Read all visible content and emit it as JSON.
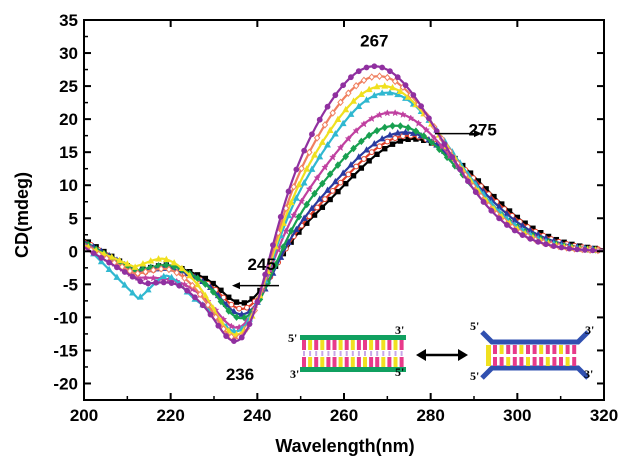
{
  "chart_data": {
    "type": "line",
    "title": "",
    "xlabel": "Wavelength(nm)",
    "ylabel": "CD(mdeg)",
    "xlim": [
      200,
      320
    ],
    "ylim": [
      -22.5,
      35
    ],
    "xticks": [
      200,
      220,
      240,
      260,
      280,
      300,
      320
    ],
    "yticks": [
      -20,
      -15,
      -10,
      -5,
      0,
      5,
      10,
      15,
      20,
      25,
      30,
      35
    ],
    "grid": false,
    "legend": "none",
    "series": [
      {
        "color": "#000000",
        "marker": "square",
        "min": [
          237,
          -8.5
        ],
        "max": [
          276,
          17.0
        ],
        "dip": [
          212,
          -3.0
        ],
        "bump": [
          219,
          -2.0
        ]
      },
      {
        "color": "#e0402a",
        "marker": "circle-open",
        "min": [
          237,
          -9.5
        ],
        "max": [
          275,
          17.5
        ],
        "dip": [
          212,
          -3.5
        ],
        "bump": [
          219,
          -2.5
        ]
      },
      {
        "color": "#2a3aa0",
        "marker": "triangle",
        "min": [
          237,
          -10.5
        ],
        "max": [
          274,
          18.0
        ],
        "dip": [
          212,
          -3.0
        ],
        "bump": [
          219,
          -2.5
        ]
      },
      {
        "color": "#18a050",
        "marker": "diamond",
        "min": [
          237,
          -11.5
        ],
        "max": [
          272,
          19.0
        ],
        "dip": [
          212,
          -3.0
        ],
        "bump": [
          219,
          -2.0
        ]
      },
      {
        "color": "#c040a0",
        "marker": "star",
        "min": [
          236,
          -13.0
        ],
        "max": [
          271,
          21.0
        ],
        "dip": [
          212,
          -4.0
        ],
        "bump": [
          219,
          -4.0
        ]
      },
      {
        "color": "#30b8d0",
        "marker": "triangle",
        "min": [
          236,
          -14.0
        ],
        "max": [
          270,
          24.0
        ],
        "dip": [
          213,
          -7.5
        ],
        "bump": [
          219,
          -3.5
        ]
      },
      {
        "color": "#f0e020",
        "marker": "triangle",
        "min": [
          236,
          -15.0
        ],
        "max": [
          269,
          25.0
        ],
        "dip": [
          212,
          -2.5
        ],
        "bump": [
          218,
          -1.0
        ]
      },
      {
        "color": "#f08060",
        "marker": "diamond-open",
        "min": [
          236,
          -16.0
        ],
        "max": [
          268,
          26.5
        ],
        "dip": [
          212,
          -3.5
        ],
        "bump": [
          219,
          -2.5
        ]
      },
      {
        "color": "#9030a0",
        "marker": "circle",
        "min": [
          236,
          -17.0
        ],
        "max": [
          267,
          28.0
        ],
        "dip": [
          214,
          -5.0
        ],
        "bump": [
          221,
          -4.5
        ]
      }
    ],
    "annotations": [
      {
        "text": "267",
        "x": 267,
        "y": 31
      },
      {
        "text": "275",
        "x": 292,
        "y": 17.5
      },
      {
        "text": "245",
        "x": 241,
        "y": -2.8
      },
      {
        "text": "236",
        "x": 236,
        "y": -19.5
      }
    ],
    "inset": {
      "left_labels": [
        "5'",
        "3'",
        "3'",
        "5'"
      ],
      "right_labels": [
        "5'",
        "3'",
        "5'",
        "3'"
      ]
    }
  }
}
